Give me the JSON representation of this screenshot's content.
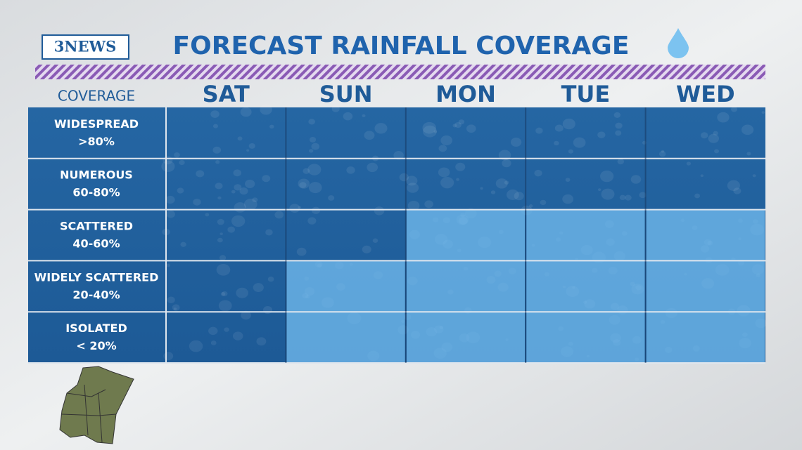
{
  "logo": "3NEWS",
  "chart_data": {
    "type": "bar",
    "title": "FORECAST RAINFALL COVERAGE",
    "y_label": "COVERAGE",
    "categories": [
      "SAT",
      "SUN",
      "MON",
      "TUE",
      "WED"
    ],
    "values": [
      0,
      40,
      60,
      60,
      60
    ],
    "color": "#74bdf0",
    "ylim": [
      0,
      100
    ],
    "bands": [
      {
        "name": "WIDESPREAD",
        "range": ">80%"
      },
      {
        "name": "NUMEROUS",
        "range": "60-80%"
      },
      {
        "name": "SCATTERED",
        "range": "40-60%"
      },
      {
        "name": "WIDELY SCATTERED",
        "range": "20-40%"
      },
      {
        "name": "ISOLATED",
        "range": "< 20%"
      }
    ]
  }
}
